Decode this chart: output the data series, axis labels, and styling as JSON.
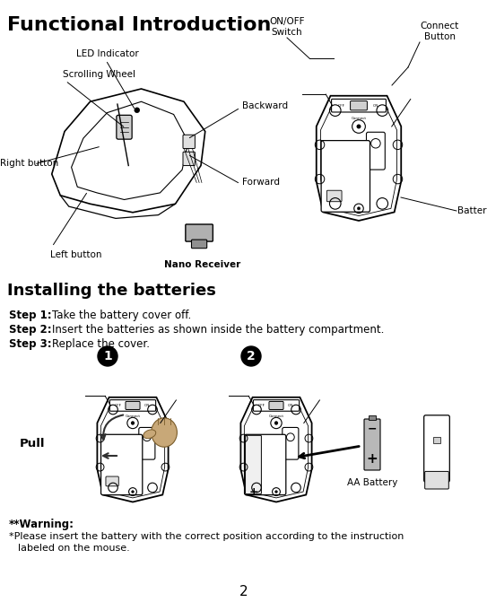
{
  "title": "Functional Introduction",
  "bg_color": "#ffffff",
  "text_color": "#000000",
  "page_number": "2",
  "section1_labels": {
    "led_indicator": "LED Indicator",
    "scrolling_wheel": "Scrolling Wheel",
    "right_button": "Right button",
    "backward": "Backward",
    "forward": "Forward",
    "left_button": "Left button",
    "nano_receiver": "Nano Receiver",
    "on_off_switch": "ON/OFF\nSwitch",
    "connect_button": "Connect\nButton",
    "battery_cover": "Battery Cover"
  },
  "section2_title": "Installing the batteries",
  "step1": "Take the battery cover off.",
  "step2": "Insert the batteries as shown inside the battery compartment.",
  "step3": "Replace the cover.",
  "pull_label": "Pull",
  "aa_battery_label": "AA Battery",
  "warning_bold": "**Warning:",
  "warning_text": "*Please insert the battery with the correct position according to the instruction\n labeled on the mouse."
}
